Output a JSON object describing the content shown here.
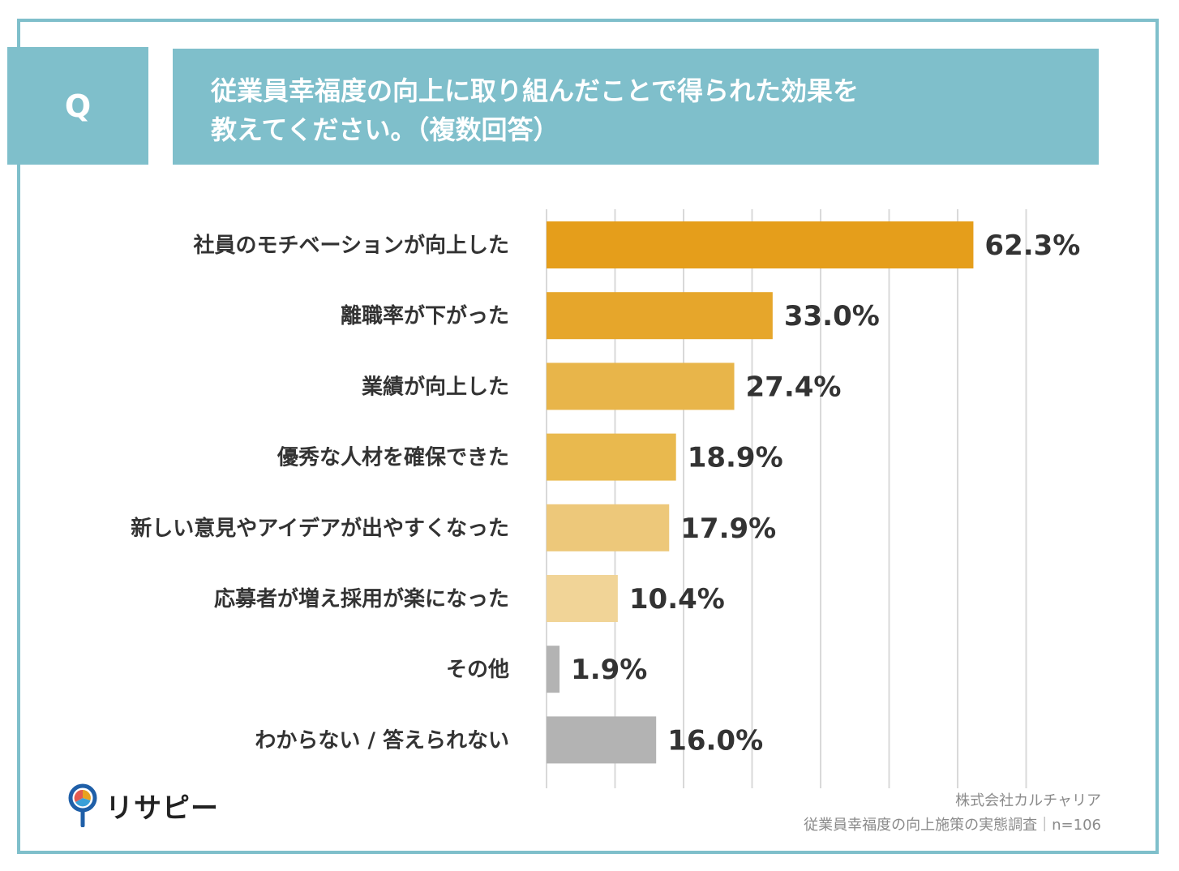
{
  "question": {
    "badge": "Q",
    "line1": "従業員幸福度の向上に取り組んだことで得られた効果を",
    "line2": "教えてください。（複数回答）"
  },
  "chart_data": {
    "type": "bar",
    "orientation": "horizontal",
    "categories": [
      "社員のモチベーションが向上した",
      "離職率が下がった",
      "業績が向上した",
      "優秀な人材を確保できた",
      "新しい意見やアイデアが出やすくなった",
      "応募者が増え採用が楽になった",
      "その他",
      "わからない / 答えられない"
    ],
    "values": [
      62.3,
      33.0,
      27.4,
      18.9,
      17.9,
      10.4,
      1.9,
      16.0
    ],
    "value_labels": [
      "62.3%",
      "33.0%",
      "27.4%",
      "18.9%",
      "17.9%",
      "10.4%",
      "1.9%",
      "16.0%"
    ],
    "colors": [
      "#e59e1b",
      "#e6a62b",
      "#e8b54a",
      "#e9b94e",
      "#edc87a",
      "#f1d497",
      "#b3b3b3",
      "#b3b3b3"
    ],
    "xlim": [
      0,
      70
    ],
    "grid": true,
    "grid_color": "#d9d9d9"
  },
  "logo": {
    "text": "リサピー"
  },
  "source": {
    "company": "株式会社カルチャリア",
    "survey": "従業員幸福度の向上施策の実態調査｜n=106"
  }
}
